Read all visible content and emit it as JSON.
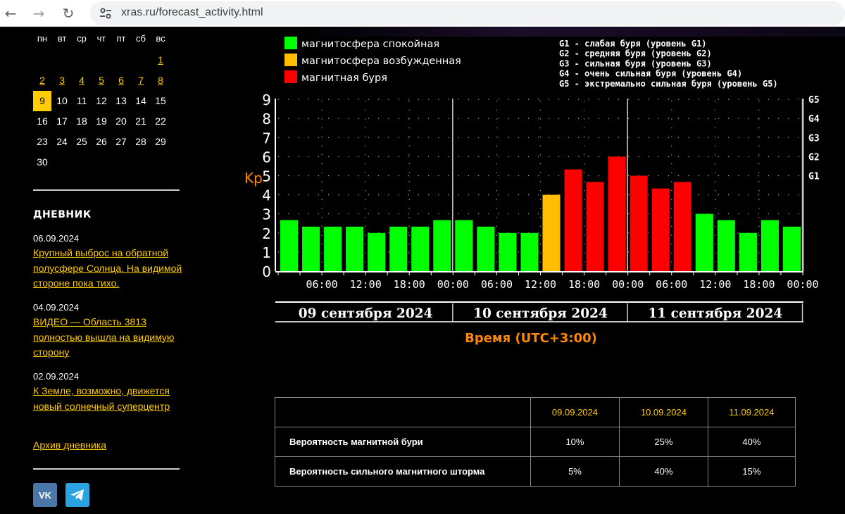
{
  "browser": {
    "url": "xras.ru/forecast_activity.html"
  },
  "calendar": {
    "weekdays": [
      "пн",
      "вт",
      "ср",
      "чт",
      "пт",
      "сб",
      "вс"
    ],
    "start_offset": 6,
    "days": 30,
    "linked_days": [
      1,
      2,
      3,
      4,
      5,
      6,
      7,
      8
    ],
    "today": 9
  },
  "diary": {
    "title": "ДНЕВНИК",
    "entries": [
      {
        "date": "06.09.2024",
        "text": "Крупный выброс на обратной полусфере Солнца. На видимой стороне пока тихо."
      },
      {
        "date": "04.09.2024",
        "text": "ВИДЕО — Область 3813 полностью вышла на видимую сторону"
      },
      {
        "date": "02.09.2024",
        "text": "К Земле, возможно, движется новый солнечный суперцентр"
      }
    ],
    "archive_label": "Архив дневника"
  },
  "social": [
    {
      "name": "vk",
      "label": "VK",
      "color": "#4a76a8"
    },
    {
      "name": "telegram",
      "color": "#2aa3e0"
    }
  ],
  "legend": [
    {
      "label": "магнитосфера спокойная",
      "color": "#00ff00"
    },
    {
      "label": "магнитосфера возбужденная",
      "color": "#ffbf00"
    },
    {
      "label": "магнитная буря",
      "color": "#ff0000"
    }
  ],
  "storm_levels": [
    "G1 - слабая буря (уровень G1)",
    "G2 - средняя буря (уровень G2)",
    "G3 - сильная буря (уровень G3)",
    "G4 - очень сильная буря (уровень G4)",
    "G5 - экстремально сильная буря (уровень G5)"
  ],
  "chart_data": {
    "type": "bar",
    "ylabel": "Kp",
    "xlabel": "Время (UTC+3:00)",
    "ylim": [
      0,
      9.3
    ],
    "yticks": [
      0,
      1,
      2,
      3,
      4,
      5,
      6,
      7,
      8,
      9
    ],
    "right_ticks": [
      {
        "label": "G1",
        "value": 5
      },
      {
        "label": "G2",
        "value": 6
      },
      {
        "label": "G3",
        "value": 7
      },
      {
        "label": "G4",
        "value": 8
      },
      {
        "label": "G5",
        "value": 9
      }
    ],
    "xticks": [
      "06:00",
      "12:00",
      "18:00",
      "00:00",
      "06:00",
      "12:00",
      "18:00",
      "00:00",
      "06:00",
      "12:00",
      "18:00",
      "00:00"
    ],
    "days": [
      "09 сентября 2024",
      "10 сентября 2024",
      "11 сентября 2024"
    ],
    "values": [
      2.67,
      2.33,
      2.33,
      2.33,
      2.0,
      2.33,
      2.33,
      2.67,
      2.67,
      2.33,
      2.0,
      2.0,
      4.0,
      5.33,
      4.67,
      6.0,
      5.0,
      4.33,
      4.67,
      3.0,
      2.67,
      2.0,
      2.67,
      2.33
    ],
    "colors": [
      "#00ff00",
      "#00ff00",
      "#00ff00",
      "#00ff00",
      "#00ff00",
      "#00ff00",
      "#00ff00",
      "#00ff00",
      "#00ff00",
      "#00ff00",
      "#00ff00",
      "#00ff00",
      "#ffbf00",
      "#ff0000",
      "#ff0000",
      "#ff0000",
      "#ff0000",
      "#ff0000",
      "#ff0000",
      "#00ff00",
      "#00ff00",
      "#00ff00",
      "#00ff00",
      "#00ff00"
    ],
    "grid": true
  },
  "probabilities": {
    "dates": [
      "09.09.2024",
      "10.09.2024",
      "11.09.2024"
    ],
    "rows": [
      {
        "label": "Вероятность магнитной бури",
        "values": [
          "10%",
          "25%",
          "40%"
        ]
      },
      {
        "label": "Вероятность сильного магнитного шторма",
        "values": [
          "5%",
          "40%",
          "15%"
        ]
      }
    ]
  }
}
